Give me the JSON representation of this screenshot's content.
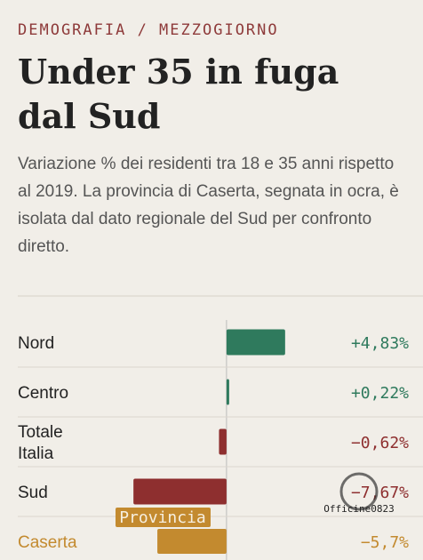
{
  "kicker": "DEMOGRAFIA / MEZZOGIORNO",
  "chart_data": {
    "type": "hbar",
    "title": "Under 35 in fuga dal Sud",
    "subtitle": "Variazione % dei residenti tra 18 e 35 anni rispetto al 2019. La provincia di Caserta, segnata in ocra, è isolata dal dato regionale del Sud per confronto diretto.",
    "categories": [
      "Nord",
      "Centro",
      "Totale Italia",
      "Sud",
      "Caserta"
    ],
    "values": [
      4.83,
      0.22,
      -0.62,
      -7.67,
      -5.7
    ],
    "value_labels": [
      "+4,83%",
      "+0,22%",
      "−0,62%",
      "−7,67%",
      "−5,7%"
    ],
    "colors": [
      "#2f7a5d",
      "#2f7a5d",
      "#8e2f2f",
      "#8e2f2f",
      "#c38a2f"
    ],
    "label_colors": [
      "#222222",
      "#222222",
      "#222222",
      "#222222",
      "#c38a2f"
    ],
    "badge": "Provincia",
    "xlim": [
      -9,
      5.5
    ]
  },
  "watermark": "Officine0823"
}
